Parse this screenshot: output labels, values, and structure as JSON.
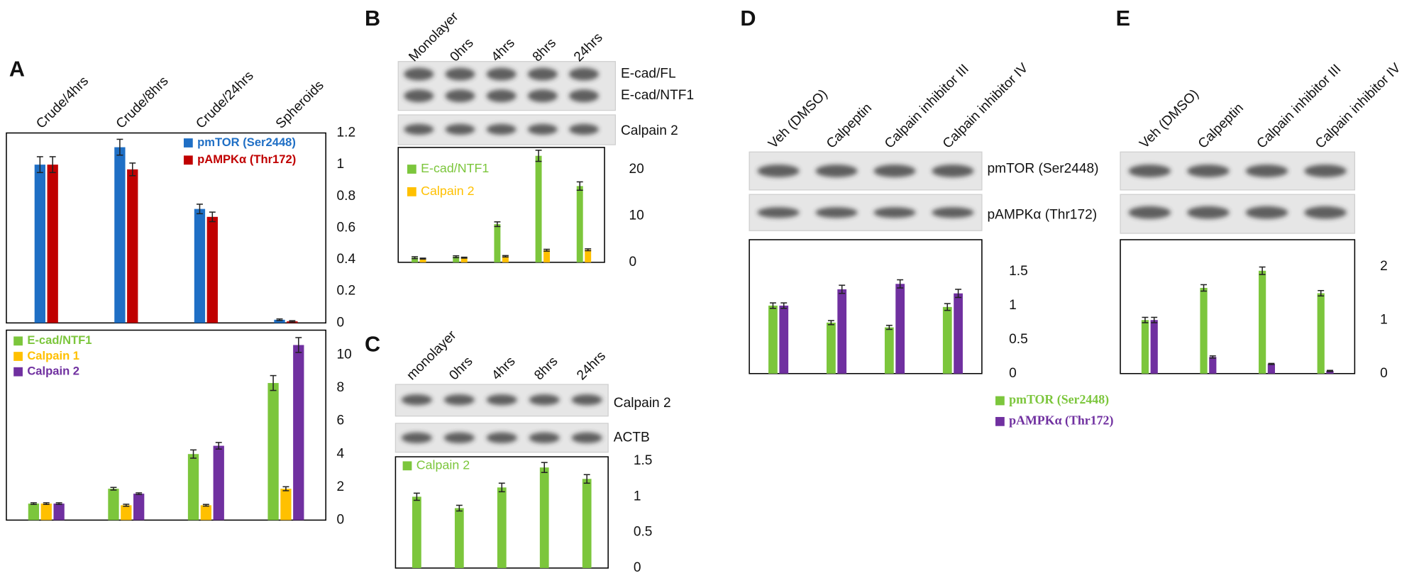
{
  "panels": [
    {
      "label": "A"
    },
    {
      "label": "B",
      "blot_labels": [
        "E-cad/FL",
        "E-cad/NTF1",
        "Calpain 2"
      ]
    },
    {
      "label": "C",
      "blot_labels": [
        "Calpain 2",
        "ACTB"
      ]
    },
    {
      "label": "D",
      "blot_labels": [
        "pmTOR (Ser2448)",
        "pAMPKα (Thr172)"
      ]
    },
    {
      "label": "E"
    }
  ],
  "chart_data": [
    {
      "type": "bar",
      "categories": [
        "Crude/4hrs",
        "Crude/8hrs",
        "Crude/24hrs",
        "Spheroids"
      ],
      "series": [
        {
          "name": "pmTOR (Ser2448)",
          "color": "#1f6fc5",
          "values": [
            1.0,
            1.11,
            0.72,
            0.02
          ],
          "errors": [
            0.05,
            0.05,
            0.03,
            0.005
          ]
        },
        {
          "name": "pAMPKα (Thr172)",
          "color": "#c00000",
          "values": [
            1.0,
            0.97,
            0.67,
            0.01
          ],
          "errors": [
            0.05,
            0.04,
            0.03,
            0.004
          ]
        }
      ],
      "ylim": [
        0,
        1.2
      ],
      "yticks": [
        0,
        0.2,
        0.4,
        0.6,
        0.8,
        1,
        1.2
      ],
      "legend": "upper right"
    },
    {
      "type": "bar",
      "categories": [
        null,
        null,
        null,
        null
      ],
      "series": [
        {
          "name": "E-cad/NTF1",
          "color": "#7cc63c",
          "values": [
            1.0,
            1.9,
            4.0,
            8.3
          ],
          "errors": [
            0.05,
            0.08,
            0.25,
            0.45
          ]
        },
        {
          "name": "Calpain 1",
          "color": "#ffc000",
          "values": [
            1.0,
            0.9,
            0.9,
            1.9
          ],
          "errors": [
            0.05,
            0.06,
            0.05,
            0.12
          ]
        },
        {
          "name": "Calpain 2",
          "color": "#7030a0",
          "values": [
            1.0,
            1.6,
            4.5,
            10.6
          ],
          "errors": [
            0.05,
            0.05,
            0.2,
            0.45
          ]
        }
      ],
      "ylim": [
        0,
        11.5
      ],
      "yticks": [
        0,
        2,
        4,
        6,
        8,
        10
      ],
      "legend": "upper left"
    },
    {
      "type": "bar",
      "categories": [
        "Monolayer",
        "0hrs",
        "4hrs",
        "8hrs",
        "24hrs"
      ],
      "series": [
        {
          "name": "E-cad/NTF1",
          "color": "#7cc63c",
          "values": [
            1.0,
            1.2,
            8.2,
            22.9,
            16.4
          ],
          "errors": [
            0.2,
            0.2,
            0.5,
            1.2,
            0.9
          ]
        },
        {
          "name": "Calpain 2",
          "color": "#ffc000",
          "values": [
            0.8,
            1.0,
            1.3,
            2.6,
            2.7
          ],
          "errors": [
            0.1,
            0.1,
            0.15,
            0.2,
            0.2
          ]
        }
      ],
      "ylim": [
        0,
        24.7
      ],
      "yticks": [
        0,
        10,
        20
      ],
      "legend": "upper left"
    },
    {
      "type": "bar",
      "categories": [
        "monolayer",
        "0hrs",
        "4hrs",
        "8hrs",
        "24hrs"
      ],
      "series": [
        {
          "name": "Calpain 2",
          "color": "#7cc63c",
          "values": [
            1.0,
            0.84,
            1.13,
            1.41,
            1.25
          ],
          "errors": [
            0.05,
            0.04,
            0.06,
            0.07,
            0.06
          ]
        }
      ],
      "ylim": [
        0,
        1.56
      ],
      "yticks": [
        0,
        0.5,
        1,
        1.5
      ],
      "legend": "upper left"
    },
    {
      "type": "bar",
      "categories": [
        "Veh (DMSO)",
        "Calpeptin",
        "Calpain inhibitor III",
        "Calpain inhibitor IV"
      ],
      "series": [
        {
          "name": "pmTOR (Ser2448)",
          "color": "#7cc63c",
          "values": [
            1.0,
            0.75,
            0.68,
            0.98
          ],
          "errors": [
            0.04,
            0.03,
            0.03,
            0.05
          ]
        },
        {
          "name": "pAMPKα (Thr172)",
          "color": "#7030a0",
          "values": [
            1.0,
            1.24,
            1.32,
            1.18
          ],
          "errors": [
            0.04,
            0.06,
            0.06,
            0.06
          ]
        }
      ],
      "ylim": [
        0,
        1.97
      ],
      "yticks": [
        0,
        0.5,
        1,
        1.5
      ],
      "legend": "below"
    },
    {
      "type": "bar",
      "categories": [
        "Veh (DMSO)",
        "Calpeptin",
        "Calpain inhibitor III",
        "Calpain inhibitor IV"
      ],
      "series": [
        {
          "color": "#7cc63c",
          "values": [
            1.0,
            1.6,
            1.92,
            1.5
          ],
          "errors": [
            0.05,
            0.06,
            0.07,
            0.05
          ]
        },
        {
          "color": "#7030a0",
          "values": [
            1.0,
            0.31,
            0.18,
            0.05
          ],
          "errors": [
            0.05,
            0.02,
            0.01,
            0.01
          ]
        }
      ],
      "ylim": [
        0,
        2.5
      ],
      "yticks": [
        0,
        1,
        2
      ]
    }
  ]
}
